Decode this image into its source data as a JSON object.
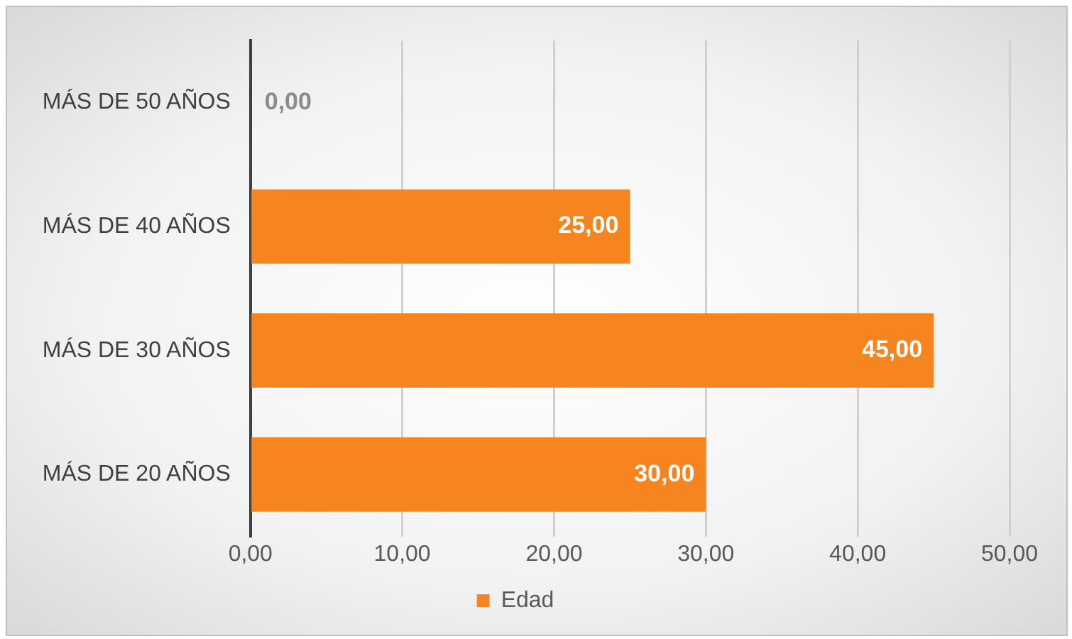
{
  "chart_data": {
    "type": "bar",
    "orientation": "horizontal",
    "categories": [
      "MÁS DE 50 AÑOS",
      "MÁS DE 40 AÑOS",
      "MÁS DE 30 AÑOS",
      "MÁS DE 20 AÑOS"
    ],
    "series": [
      {
        "name": "Edad",
        "color": "#f7851f",
        "values": [
          0,
          25,
          45,
          30
        ],
        "value_labels": [
          "0,00",
          "25,00",
          "45,00",
          "30,00"
        ]
      }
    ],
    "xlim": [
      0,
      50
    ],
    "xticks": [
      {
        "value": 0,
        "label": "0,00"
      },
      {
        "value": 10,
        "label": "10,00"
      },
      {
        "value": 20,
        "label": "20,00"
      },
      {
        "value": 30,
        "label": "30,00"
      },
      {
        "value": 40,
        "label": "40,00"
      },
      {
        "value": 50,
        "label": "50,00"
      }
    ],
    "grid": "x",
    "legend": "bottom"
  }
}
